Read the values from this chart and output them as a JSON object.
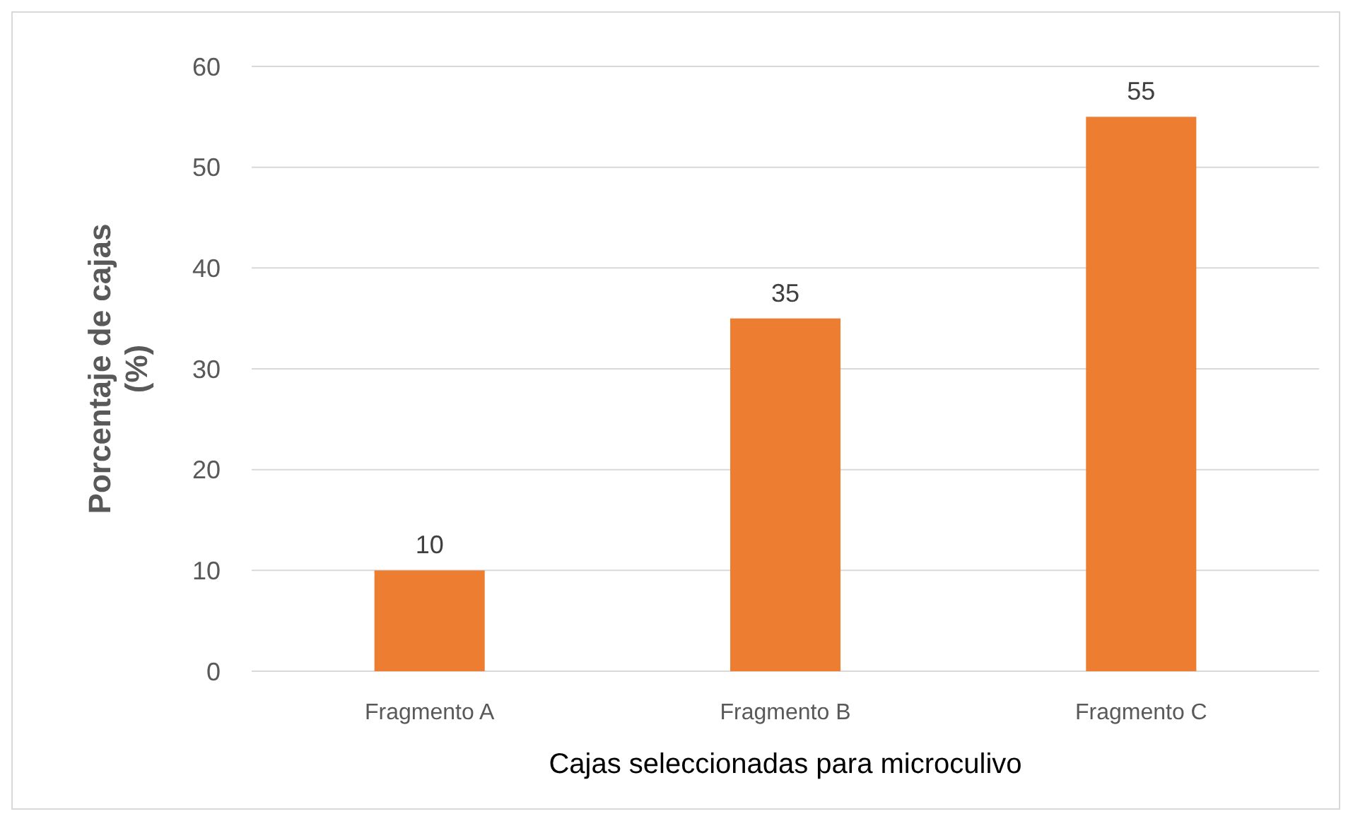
{
  "chart_data": {
    "type": "bar",
    "xlabel": "Cajas seleccionadas para microculivo",
    "ylabel": "Porcentaje de cajas (%)",
    "categories": [
      "Fragmento A",
      "Fragmento B",
      "Fragmento C"
    ],
    "values": [
      10,
      35,
      55
    ],
    "color": "#ed7d31",
    "ylim": [
      0,
      60
    ],
    "yticks": [
      0,
      10,
      20,
      30,
      40,
      50,
      60
    ],
    "grid": "y",
    "data_labels": true
  }
}
